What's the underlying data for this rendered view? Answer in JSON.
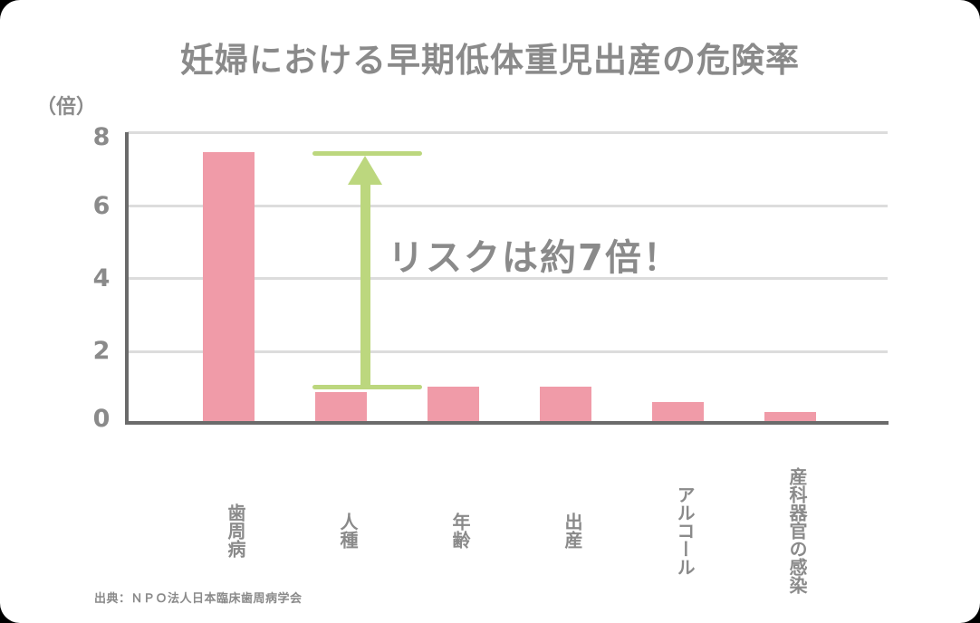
{
  "chart_data": {
    "type": "bar",
    "title": "妊婦における早期低体重児出産の危険率",
    "ylabel": "（倍）",
    "xlabel": "",
    "ylim": [
      0,
      8
    ],
    "yticks": [
      "0",
      "2",
      "4",
      "6",
      "8"
    ],
    "grid": true,
    "legend": null,
    "categories": [
      "歯周病",
      "人種",
      "年齢",
      "出産",
      "アルコール",
      "産科器官の感染"
    ],
    "values": [
      7.45,
      0.83,
      0.98,
      0.98,
      0.55,
      0.27
    ],
    "bar_color": "#f09ba8",
    "annotation": {
      "text": "リスクは約7倍！",
      "arrow_from": 1.0,
      "arrow_to": 7.45,
      "color": "#bcd77e"
    },
    "source": "出典：ＮＰＯ法人日本臨床歯周病学会"
  },
  "labels": {
    "title": "妊婦における早期低体重児出産の危険率",
    "yunit": "（倍）",
    "ytick_0": "0",
    "ytick_2": "2",
    "ytick_4": "4",
    "ytick_6": "6",
    "ytick_8": "8",
    "cat_0": "歯周病",
    "cat_1": "人種",
    "cat_2": "年齢",
    "cat_3": "出産",
    "cat_4": "アルコール",
    "cat_5": "産科器官の感染",
    "annotation": "リスクは約7倍！",
    "source": "出典：ＮＰＯ法人日本臨床歯周病学会"
  }
}
